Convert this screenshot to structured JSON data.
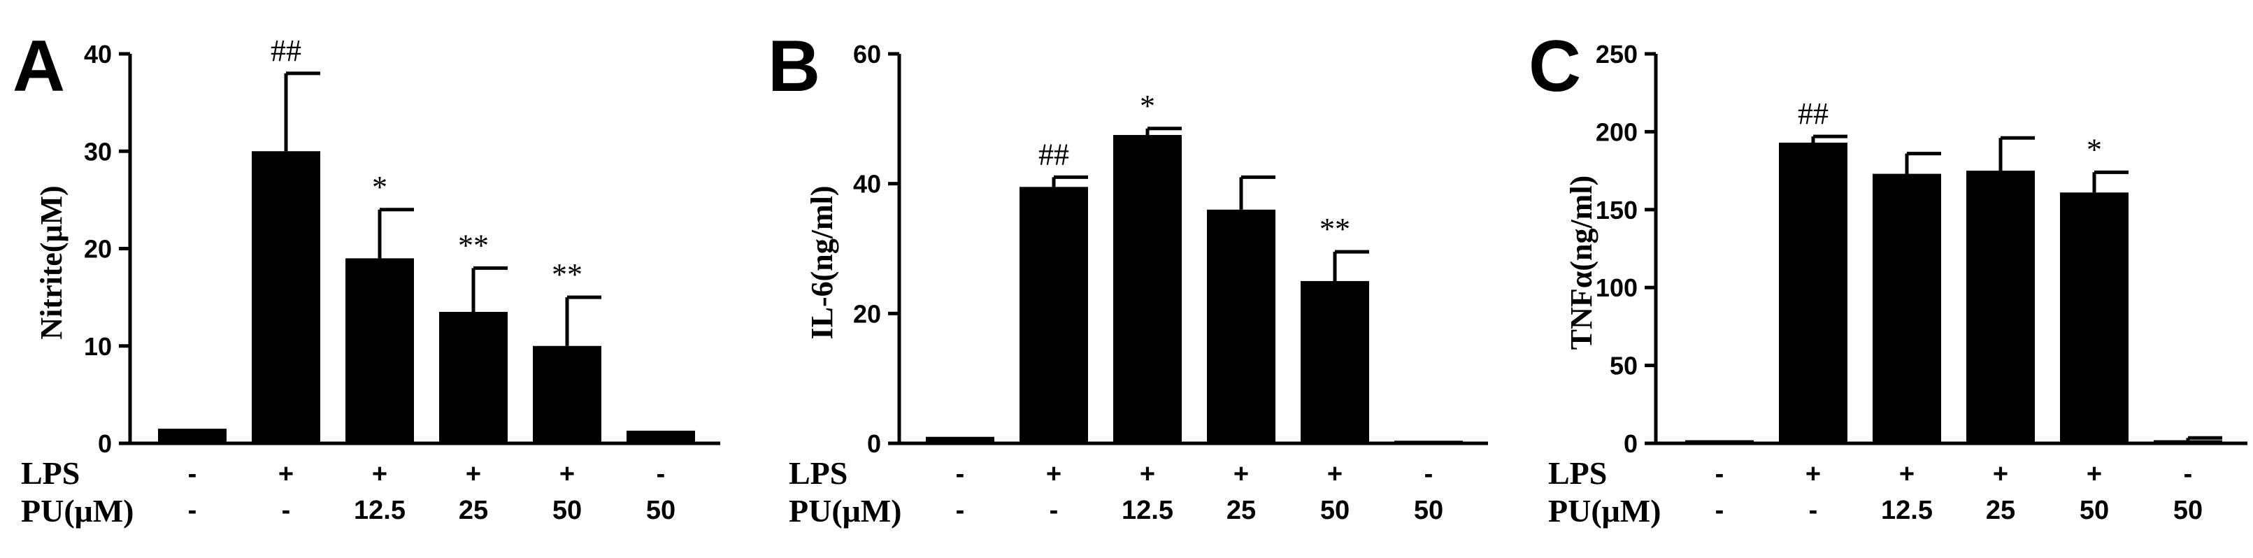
{
  "chart_data": [
    {
      "type": "bar",
      "panel": "A",
      "ylabel": "Nitrite(μM)",
      "ylim": [
        0,
        40
      ],
      "yticks": [
        "0",
        "10",
        "20",
        "30",
        "40"
      ],
      "values": [
        1.5,
        30,
        19,
        13.5,
        10,
        1.3
      ],
      "errors": [
        0,
        8,
        5,
        4.5,
        5,
        0
      ],
      "annotations": [
        "",
        "##",
        "*",
        "**",
        "**",
        ""
      ],
      "lps": [
        "-",
        "+",
        "+",
        "+",
        "+",
        "-"
      ],
      "pu": [
        "-",
        "-",
        "12.5",
        "25",
        "50",
        "50"
      ],
      "lps_label": "LPS",
      "pu_label": "PU(μM)"
    },
    {
      "type": "bar",
      "panel": "B",
      "ylabel": "IL-6(ng/ml)",
      "ylim": [
        0,
        60
      ],
      "yticks": [
        "0",
        "20",
        "40",
        "60"
      ],
      "values": [
        1,
        39.5,
        47.5,
        36,
        25,
        0.4
      ],
      "errors": [
        0,
        1.5,
        1,
        5,
        4.5,
        0
      ],
      "annotations": [
        "",
        "##",
        "*",
        "",
        "**",
        ""
      ],
      "lps": [
        "-",
        "+",
        "+",
        "+",
        "+",
        "-"
      ],
      "pu": [
        "-",
        "-",
        "12.5",
        "25",
        "50",
        "50"
      ],
      "lps_label": "LPS",
      "pu_label": "PU(μM)"
    },
    {
      "type": "bar",
      "panel": "C",
      "ylabel": "TNFα(ng/ml)",
      "ylim": [
        0,
        250
      ],
      "yticks": [
        "0",
        "50",
        "100",
        "150",
        "200",
        "250"
      ],
      "values": [
        2,
        193,
        173,
        175,
        161,
        2
      ],
      "errors": [
        0,
        4,
        13,
        21,
        13,
        1.5
      ],
      "annotations": [
        "",
        "##",
        "",
        "",
        "*",
        ""
      ],
      "lps": [
        "-",
        "+",
        "+",
        "+",
        "+",
        "-"
      ],
      "pu": [
        "-",
        "-",
        "12.5",
        "25",
        "50",
        "50"
      ],
      "lps_label": "LPS",
      "pu_label": "PU(μM)"
    }
  ]
}
